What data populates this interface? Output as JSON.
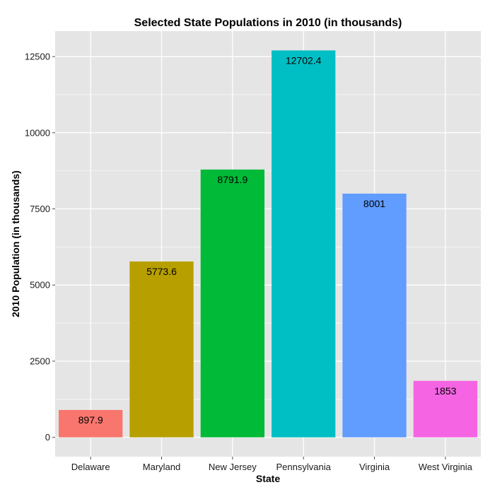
{
  "chart_data": {
    "type": "bar",
    "title": "Selected State Populations in 2010 (in thousands)",
    "xlabel": "State",
    "ylabel": "2010 Population (in thousands)",
    "categories": [
      "Delaware",
      "Maryland",
      "New Jersey",
      "Pennsylvania",
      "Virginia",
      "West Virginia"
    ],
    "values": [
      897.9,
      5773.6,
      8791.9,
      12702.4,
      8001,
      1853
    ],
    "data_labels": [
      "897.9",
      "5773.6",
      "8791.9",
      "12702.4",
      "8001",
      "1853"
    ],
    "colors": [
      "#F8766D",
      "#B79F00",
      "#00BA38",
      "#00BFC4",
      "#619CFF",
      "#F564E3"
    ],
    "yticks": [
      0,
      2500,
      5000,
      7500,
      10000,
      12500
    ],
    "ylim": [
      -635,
      13337
    ],
    "grid": true,
    "legend": "none",
    "panel_background": "#E5E5E5",
    "grid_color": "#FFFFFF"
  }
}
